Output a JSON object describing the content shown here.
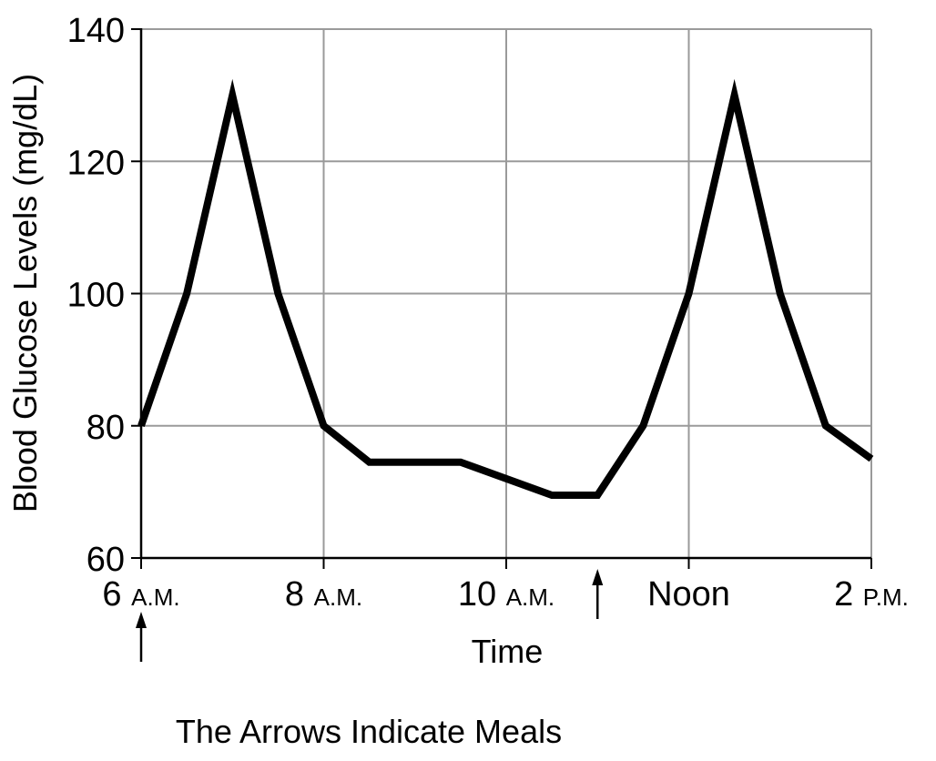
{
  "chart_data": {
    "type": "line",
    "title": "",
    "xlabel": "Time",
    "ylabel": "Blood Glucose Levels (mg/dL)",
    "ylim": [
      60,
      140
    ],
    "yticks": [
      60,
      80,
      100,
      120,
      140
    ],
    "xlim": [
      "6 A.M.",
      "2 P.M."
    ],
    "xtick_labels": [
      {
        "main": "6 ",
        "suffix": "A.M."
      },
      {
        "main": "8 ",
        "suffix": "A.M."
      },
      {
        "main": "10 ",
        "suffix": "A.M."
      },
      {
        "main": "Noon",
        "suffix": ""
      },
      {
        "main": "2 ",
        "suffix": "P.M."
      }
    ],
    "grid": true,
    "series": [
      {
        "x": [
          "6:00 A.M.",
          "6:30 A.M.",
          "7:00 A.M.",
          "7:30 A.M.",
          "8:00 A.M.",
          "8:30 A.M.",
          "9:30 A.M.",
          "10:30 A.M.",
          "11:00 A.M.",
          "11:30 A.M.",
          "Noon",
          "12:30 P.M.",
          "1:00 P.M.",
          "1:30 P.M.",
          "2:00 P.M."
        ],
        "values": [
          80,
          100,
          130,
          100,
          80,
          74.5,
          74.5,
          69.5,
          69.5,
          80,
          100,
          130,
          100,
          80,
          75
        ]
      }
    ],
    "meals": [
      "6 A.M.",
      "11 A.M."
    ],
    "annotation": "The Arrows Indicate Meals"
  }
}
